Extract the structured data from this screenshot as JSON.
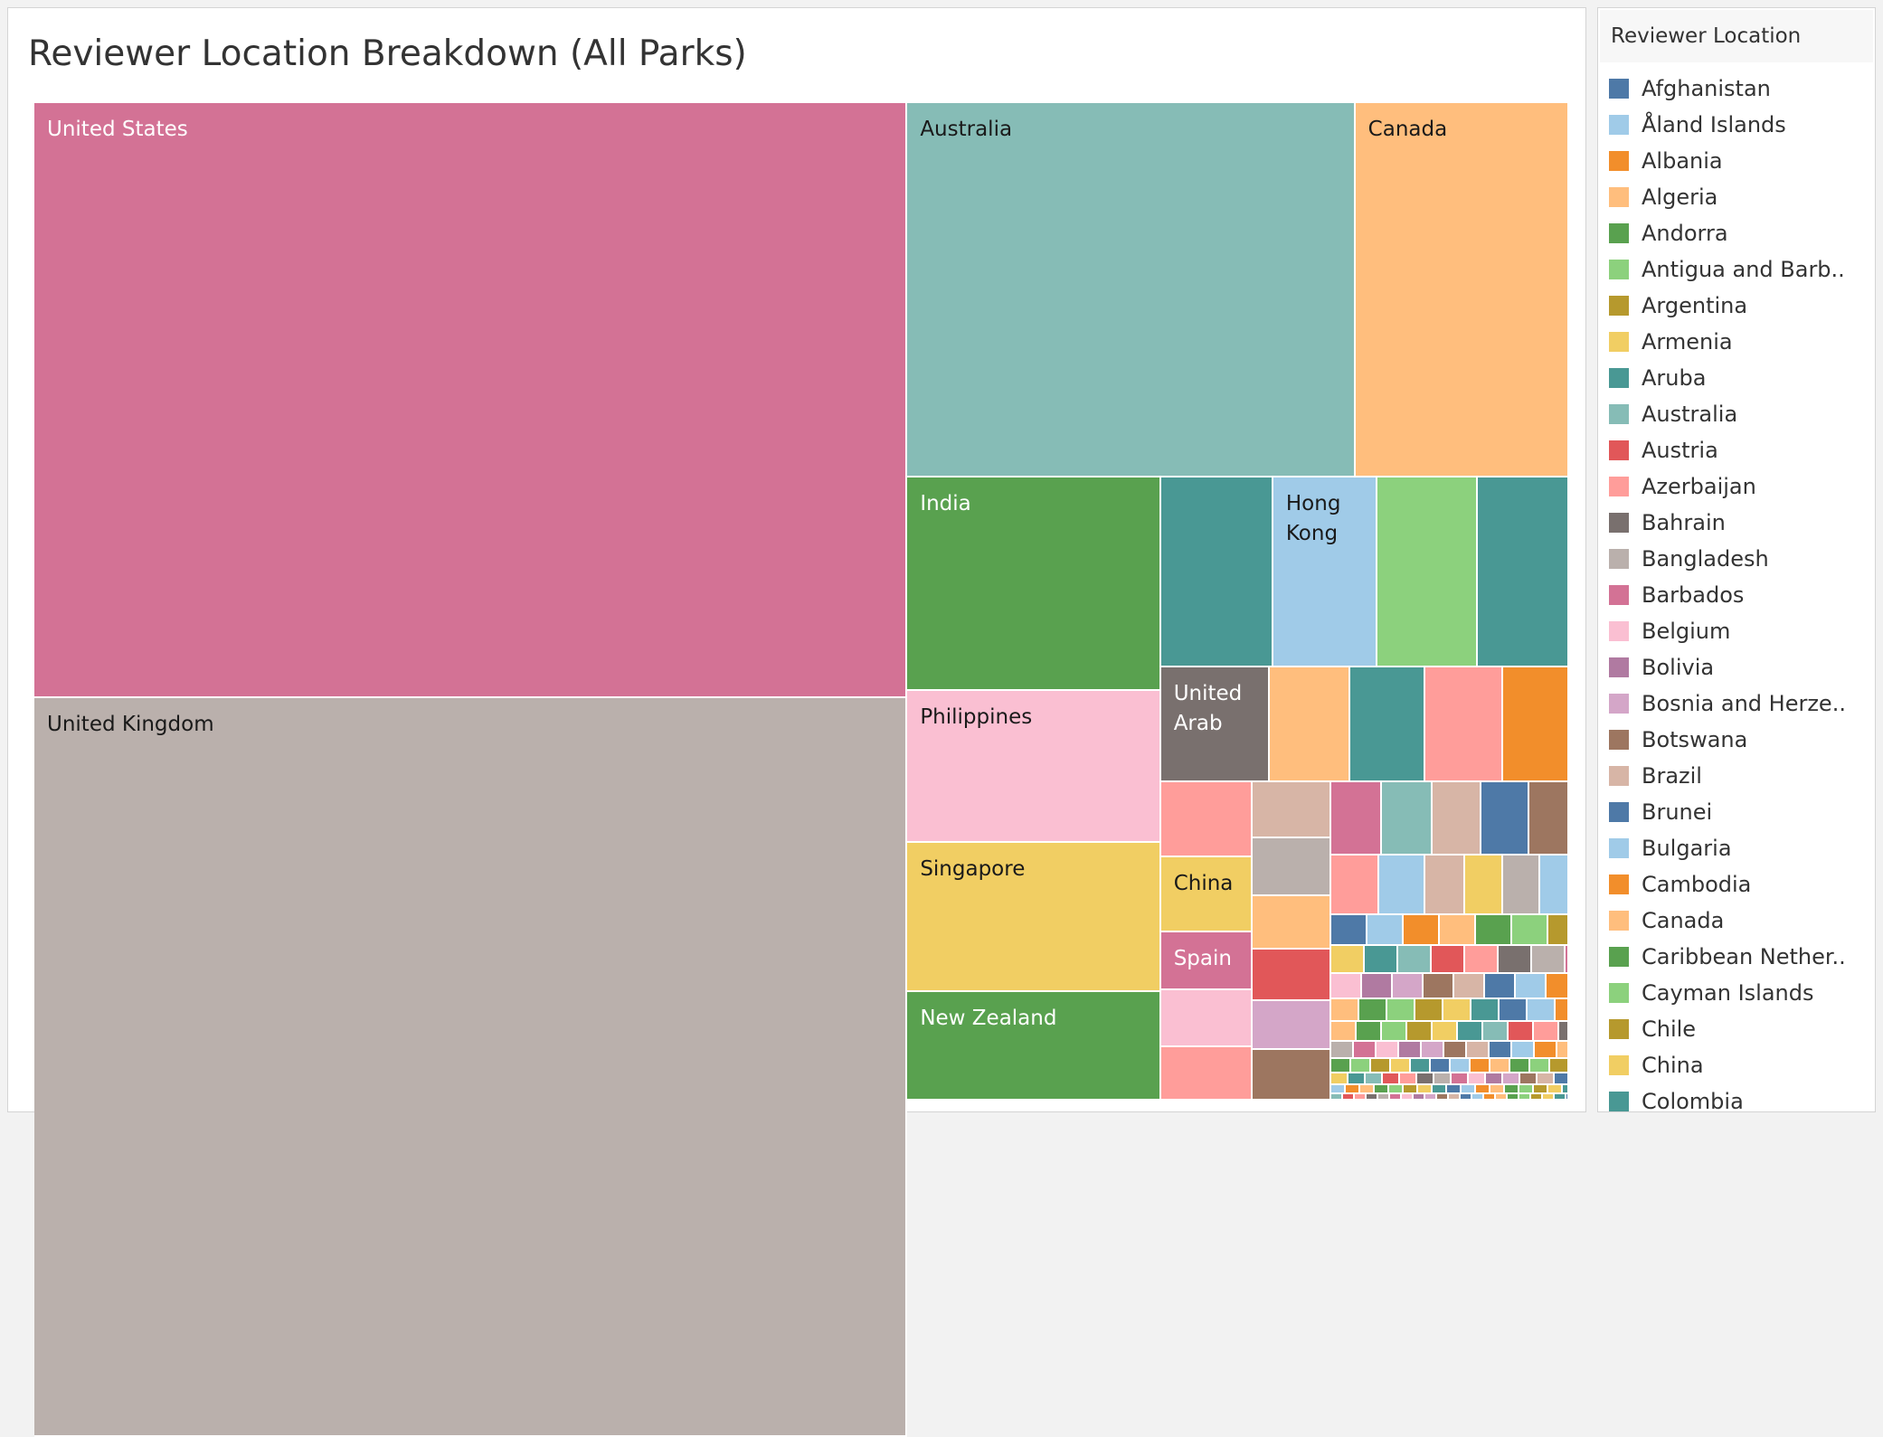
{
  "chart_data": {
    "type": "treemap",
    "title": "Reviewer Location Breakdown (All Parks)",
    "legend_title": "Reviewer Location",
    "legend_position": "right",
    "categories": [
      {
        "name": "Afghanistan",
        "color": "#4e79a7"
      },
      {
        "name": "Åland Islands",
        "color": "#a0cbe8"
      },
      {
        "name": "Albania",
        "color": "#f28e2b"
      },
      {
        "name": "Algeria",
        "color": "#ffbe7d"
      },
      {
        "name": "Andorra",
        "color": "#59a14f"
      },
      {
        "name": "Antigua and Barb..",
        "color": "#8cd17d"
      },
      {
        "name": "Argentina",
        "color": "#b6992d"
      },
      {
        "name": "Armenia",
        "color": "#f1ce63"
      },
      {
        "name": "Aruba",
        "color": "#499894"
      },
      {
        "name": "Australia",
        "color": "#86bcb6"
      },
      {
        "name": "Austria",
        "color": "#e15759"
      },
      {
        "name": "Azerbaijan",
        "color": "#ff9d9a"
      },
      {
        "name": "Bahrain",
        "color": "#79706e"
      },
      {
        "name": "Bangladesh",
        "color": "#bab0ac"
      },
      {
        "name": "Barbados",
        "color": "#d37295"
      },
      {
        "name": "Belgium",
        "color": "#fabfd2"
      },
      {
        "name": "Bolivia",
        "color": "#b07aa1"
      },
      {
        "name": "Bosnia and Herze..",
        "color": "#d4a6c8"
      },
      {
        "name": "Botswana",
        "color": "#9d7660"
      },
      {
        "name": "Brazil",
        "color": "#d7b5a6"
      },
      {
        "name": "Brunei",
        "color": "#4e79a7"
      },
      {
        "name": "Bulgaria",
        "color": "#a0cbe8"
      },
      {
        "name": "Cambodia",
        "color": "#f28e2b"
      },
      {
        "name": "Canada",
        "color": "#ffbe7d"
      },
      {
        "name": "Caribbean Nether..",
        "color": "#59a14f"
      },
      {
        "name": "Cayman Islands",
        "color": "#8cd17d"
      },
      {
        "name": "Chile",
        "color": "#b6992d"
      },
      {
        "name": "China",
        "color": "#f1ce63"
      },
      {
        "name": "Colombia",
        "color": "#499894"
      }
    ],
    "cells": [
      {
        "label": "United States",
        "color": "#d37295",
        "text_color": "#ffffff"
      },
      {
        "label": "United Kingdom",
        "color": "#bab0ac",
        "text_color": "#1a1a1a"
      },
      {
        "label": "Australia",
        "color": "#86bcb6",
        "text_color": "#1a1a1a"
      },
      {
        "label": "Canada",
        "color": "#ffbe7d",
        "text_color": "#1a1a1a"
      },
      {
        "label": "India",
        "color": "#59a14f",
        "text_color": "#ffffff"
      },
      {
        "label": "Philippines",
        "color": "#fabfd2",
        "text_color": "#1a1a1a"
      },
      {
        "label": "Singapore",
        "color": "#f1ce63",
        "text_color": "#1a1a1a"
      },
      {
        "label": "New Zealand",
        "color": "#59a14f",
        "text_color": "#ffffff"
      },
      {
        "label": "",
        "color": "#499894",
        "text_color": "#ffffff"
      },
      {
        "label": "Hong\nKong",
        "color": "#a0cbe8",
        "text_color": "#1a1a1a"
      },
      {
        "label": "",
        "color": "#8cd17d",
        "text_color": "#1a1a1a"
      },
      {
        "label": "",
        "color": "#499894",
        "text_color": "#ffffff"
      },
      {
        "label": "United\nArab",
        "color": "#79706e",
        "text_color": "#ffffff"
      },
      {
        "label": "",
        "color": "#ffbe7d",
        "text_color": "#1a1a1a"
      },
      {
        "label": "",
        "color": "#499894",
        "text_color": "#ffffff"
      },
      {
        "label": "",
        "color": "#ff9d9a",
        "text_color": "#1a1a1a"
      },
      {
        "label": "",
        "color": "#f28e2b",
        "text_color": "#1a1a1a"
      },
      {
        "label": "",
        "color": "#ff9d9a",
        "text_color": "#1a1a1a"
      },
      {
        "label": "China",
        "color": "#f1ce63",
        "text_color": "#1a1a1a"
      },
      {
        "label": "Spain",
        "color": "#d37295",
        "text_color": "#ffffff"
      },
      {
        "label": "",
        "color": "#fabfd2",
        "text_color": "#1a1a1a"
      },
      {
        "label": "",
        "color": "#ff9d9a",
        "text_color": "#1a1a1a"
      },
      {
        "label": "",
        "color": "#d7b5a6",
        "text_color": "#1a1a1a"
      },
      {
        "label": "",
        "color": "#bab0ac",
        "text_color": "#1a1a1a"
      },
      {
        "label": "",
        "color": "#ffbe7d",
        "text_color": "#1a1a1a"
      },
      {
        "label": "",
        "color": "#e15759",
        "text_color": "#1a1a1a"
      },
      {
        "label": "",
        "color": "#d4a6c8",
        "text_color": "#1a1a1a"
      },
      {
        "label": "",
        "color": "#9d7660",
        "text_color": "#1a1a1a"
      },
      {
        "label": "",
        "color": "#d37295",
        "text_color": "#1a1a1a"
      },
      {
        "label": "",
        "color": "#86bcb6",
        "text_color": "#1a1a1a"
      },
      {
        "label": "",
        "color": "#d7b5a6",
        "text_color": "#1a1a1a"
      },
      {
        "label": "",
        "color": "#4e79a7",
        "text_color": "#1a1a1a"
      },
      {
        "label": "",
        "color": "#9d7660",
        "text_color": "#1a1a1a"
      },
      {
        "label": "",
        "color": "#ff9d9a",
        "text_color": "#1a1a1a"
      },
      {
        "label": "",
        "color": "#a0cbe8",
        "text_color": "#1a1a1a"
      },
      {
        "label": "",
        "color": "#d7b5a6",
        "text_color": "#1a1a1a"
      },
      {
        "label": "",
        "color": "#f1ce63",
        "text_color": "#1a1a1a"
      },
      {
        "label": "",
        "color": "#bab0ac",
        "text_color": "#1a1a1a"
      },
      {
        "label": "",
        "color": "#a0cbe8",
        "text_color": "#1a1a1a"
      }
    ]
  }
}
